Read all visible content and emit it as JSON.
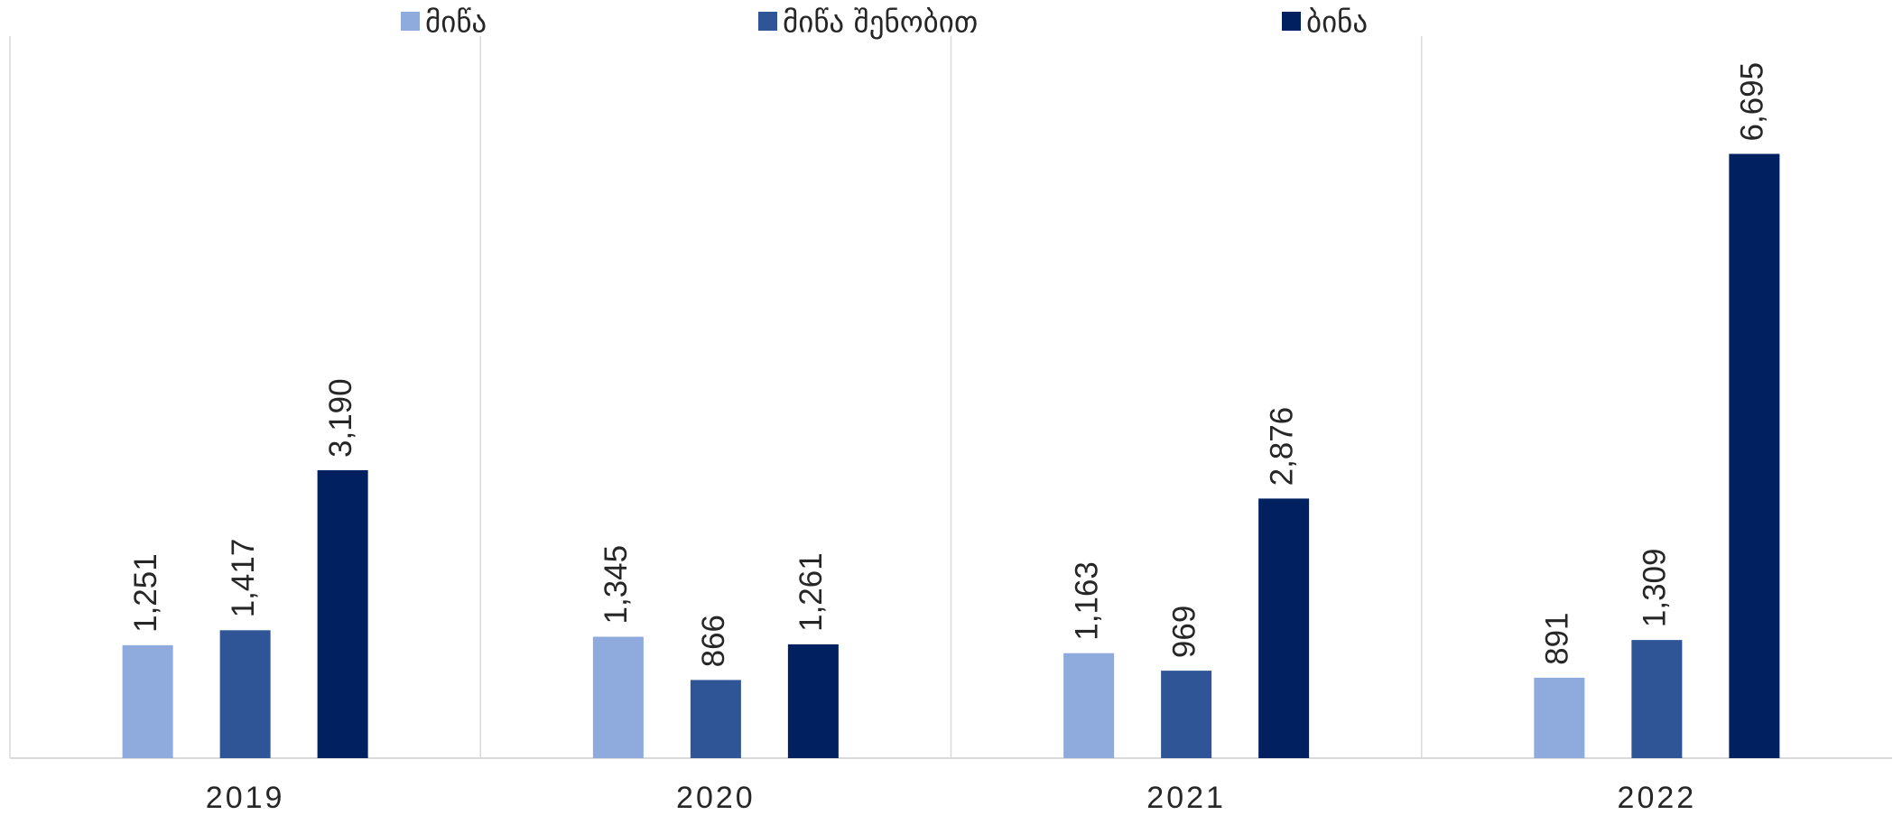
{
  "chart_data": {
    "type": "bar",
    "categories": [
      "2019",
      "2020",
      "2021",
      "2022"
    ],
    "series": [
      {
        "name": "მიწა",
        "color": "#8faadc",
        "values": [
          1251,
          1345,
          1163,
          891
        ],
        "value_labels": [
          "1,251",
          "1,345",
          "1,163",
          "891"
        ]
      },
      {
        "name": "მიწა შენობით",
        "color": "#2f5597",
        "values": [
          1417,
          866,
          969,
          1309
        ],
        "value_labels": [
          "1,417",
          "866",
          "969",
          "1,309"
        ]
      },
      {
        "name": "ბინა",
        "color": "#002060",
        "values": [
          3190,
          1261,
          2876,
          6695
        ],
        "value_labels": [
          "3,190",
          "1,261",
          "2,876",
          "6,695"
        ]
      }
    ],
    "ylim": [
      0,
      8000
    ],
    "legend": "top"
  }
}
